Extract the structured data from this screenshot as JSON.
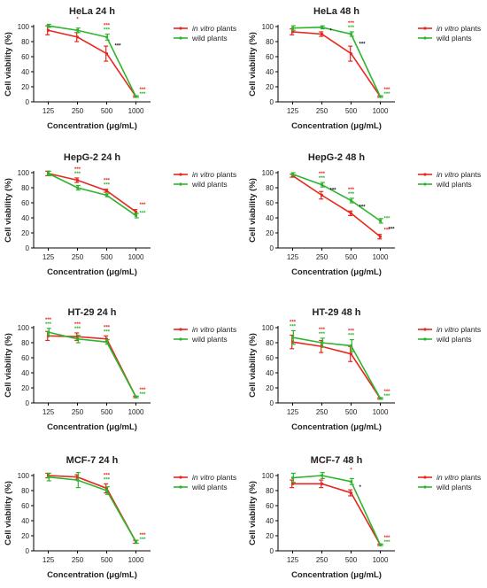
{
  "legend": {
    "series": [
      {
        "name": "in vitro plants",
        "name_prefix": "in vitro",
        "name_suffix": " plants",
        "color": "#e8271e"
      },
      {
        "name": "wild plants",
        "color": "#2cb52c"
      }
    ]
  },
  "axis_text": {
    "xlabel": "Concentration (μg/mL)",
    "ylabel": "Cell viability (%)"
  },
  "chart_data": [
    {
      "type": "line",
      "title": "HeLa 24 h",
      "x": [
        125,
        250,
        500,
        1000
      ],
      "ylim": [
        0,
        100
      ],
      "yticks": [
        0,
        20,
        40,
        60,
        80,
        100
      ],
      "series": [
        {
          "name": "in vitro plants",
          "values": [
            95,
            86,
            64,
            7
          ],
          "errors": [
            6,
            6,
            10,
            1
          ]
        },
        {
          "name": "wild plants",
          "values": [
            101,
            95,
            86,
            7
          ],
          "errors": [
            2,
            3,
            4,
            1
          ]
        }
      ],
      "annotations": [
        {
          "x": 250,
          "text": "*",
          "series": "in vitro plants"
        },
        {
          "x": 500,
          "text": "***",
          "series": "in vitro plants"
        },
        {
          "x": 500,
          "text": "***",
          "series": "wild plants"
        },
        {
          "x": 500,
          "text": "***",
          "series": "comparison"
        },
        {
          "x": 1000,
          "text": "***",
          "series": "in vitro plants"
        },
        {
          "x": 1000,
          "text": "***",
          "series": "wild plants"
        }
      ]
    },
    {
      "type": "line",
      "title": "HeLa 48 h",
      "x": [
        125,
        250,
        500,
        1000
      ],
      "ylim": [
        0,
        100
      ],
      "yticks": [
        0,
        20,
        40,
        60,
        80,
        100
      ],
      "series": [
        {
          "name": "in vitro plants",
          "values": [
            93,
            90,
            64,
            7
          ],
          "errors": [
            4,
            3,
            10,
            1
          ]
        },
        {
          "name": "wild plants",
          "values": [
            98,
            99,
            90,
            7
          ],
          "errors": [
            3,
            2,
            3,
            1
          ]
        }
      ],
      "annotations": [
        {
          "x": 250,
          "text": "*",
          "series": "comparison"
        },
        {
          "x": 500,
          "text": "***",
          "series": "in vitro plants"
        },
        {
          "x": 500,
          "text": "***",
          "series": "wild plants"
        },
        {
          "x": 500,
          "text": "***",
          "series": "comparison"
        },
        {
          "x": 1000,
          "text": "***",
          "series": "in vitro plants"
        },
        {
          "x": 1000,
          "text": "***",
          "series": "wild plants"
        }
      ]
    },
    {
      "type": "line",
      "title": "HepG-2 24 h",
      "x": [
        125,
        250,
        500,
        1000
      ],
      "ylim": [
        0,
        100
      ],
      "yticks": [
        0,
        20,
        40,
        60,
        80,
        100
      ],
      "series": [
        {
          "name": "in vitro plants",
          "values": [
            99,
            90,
            76,
            48
          ],
          "errors": [
            3,
            3,
            2,
            3
          ]
        },
        {
          "name": "wild plants",
          "values": [
            99,
            80,
            70,
            43
          ],
          "errors": [
            3,
            3,
            2,
            3
          ]
        }
      ],
      "annotations": [
        {
          "x": 250,
          "text": "***",
          "series": "in vitro plants"
        },
        {
          "x": 250,
          "text": "***",
          "series": "wild plants"
        },
        {
          "x": 500,
          "text": "***",
          "series": "in vitro plants"
        },
        {
          "x": 500,
          "text": "***",
          "series": "wild plants"
        },
        {
          "x": 1000,
          "text": "***",
          "series": "in vitro plants"
        },
        {
          "x": 1000,
          "text": "***",
          "series": "wild plants"
        }
      ]
    },
    {
      "type": "line",
      "title": "HepG-2 48 h",
      "x": [
        125,
        250,
        500,
        1000
      ],
      "ylim": [
        0,
        100
      ],
      "yticks": [
        0,
        20,
        40,
        60,
        80,
        100
      ],
      "series": [
        {
          "name": "in vitro plants",
          "values": [
            96,
            70,
            46,
            15
          ],
          "errors": [
            2,
            5,
            3,
            3
          ]
        },
        {
          "name": "wild plants",
          "values": [
            98,
            84,
            63,
            36
          ],
          "errors": [
            2,
            3,
            3,
            3
          ]
        }
      ],
      "annotations": [
        {
          "x": 250,
          "text": "***",
          "series": "in vitro plants"
        },
        {
          "x": 250,
          "text": "***",
          "series": "wild plants"
        },
        {
          "x": 250,
          "text": "***",
          "series": "comparison"
        },
        {
          "x": 500,
          "text": "***",
          "series": "in vitro plants"
        },
        {
          "x": 500,
          "text": "***",
          "series": "wild plants"
        },
        {
          "x": 500,
          "text": "***",
          "series": "comparison"
        },
        {
          "x": 1000,
          "text": "***",
          "series": "in vitro plants"
        },
        {
          "x": 1000,
          "text": "***",
          "series": "wild plants"
        },
        {
          "x": 1000,
          "text": "***",
          "series": "comparison"
        }
      ]
    },
    {
      "type": "line",
      "title": "HT-29 24 h",
      "x": [
        125,
        250,
        500,
        1000
      ],
      "ylim": [
        0,
        100
      ],
      "yticks": [
        0,
        20,
        40,
        60,
        80,
        100
      ],
      "series": [
        {
          "name": "in vitro plants",
          "values": [
            89,
            88,
            85,
            8
          ],
          "errors": [
            6,
            5,
            4,
            1
          ]
        },
        {
          "name": "wild plants",
          "values": [
            94,
            85,
            81,
            8
          ],
          "errors": [
            5,
            5,
            3,
            1
          ]
        }
      ],
      "annotations": [
        {
          "x": 125,
          "text": "***",
          "series": "in vitro plants"
        },
        {
          "x": 125,
          "text": "***",
          "series": "wild plants"
        },
        {
          "x": 250,
          "text": "***",
          "series": "in vitro plants"
        },
        {
          "x": 250,
          "text": "***",
          "series": "wild plants"
        },
        {
          "x": 500,
          "text": "***",
          "series": "in vitro plants"
        },
        {
          "x": 500,
          "text": "***",
          "series": "wild plants"
        },
        {
          "x": 1000,
          "text": "***",
          "series": "in vitro plants"
        },
        {
          "x": 1000,
          "text": "***",
          "series": "wild plants"
        }
      ]
    },
    {
      "type": "line",
      "title": "HT-29 48 h",
      "x": [
        125,
        250,
        500,
        1000
      ],
      "ylim": [
        0,
        100
      ],
      "yticks": [
        0,
        20,
        40,
        60,
        80,
        100
      ],
      "series": [
        {
          "name": "in vitro plants",
          "values": [
            81,
            75,
            65,
            6
          ],
          "errors": [
            9,
            8,
            10,
            1
          ]
        },
        {
          "name": "wild plants",
          "values": [
            87,
            80,
            76,
            6
          ],
          "errors": [
            9,
            6,
            8,
            1
          ]
        }
      ],
      "annotations": [
        {
          "x": 125,
          "text": "***",
          "series": "in vitro plants"
        },
        {
          "x": 125,
          "text": "***",
          "series": "wild plants"
        },
        {
          "x": 250,
          "text": "***",
          "series": "in vitro plants"
        },
        {
          "x": 250,
          "text": "***",
          "series": "wild plants"
        },
        {
          "x": 500,
          "text": "***",
          "series": "in vitro plants"
        },
        {
          "x": 500,
          "text": "***",
          "series": "wild plants"
        },
        {
          "x": 1000,
          "text": "***",
          "series": "in vitro plants"
        },
        {
          "x": 1000,
          "text": "***",
          "series": "wild plants"
        }
      ]
    },
    {
      "type": "line",
      "title": "MCF-7 24 h",
      "x": [
        125,
        250,
        500,
        1000
      ],
      "ylim": [
        0,
        100
      ],
      "yticks": [
        0,
        20,
        40,
        60,
        80,
        100
      ],
      "series": [
        {
          "name": "in vitro plants",
          "values": [
            100,
            98,
            83,
            12
          ],
          "errors": [
            3,
            3,
            6,
            2
          ]
        },
        {
          "name": "wild plants",
          "values": [
            98,
            94,
            80,
            12
          ],
          "errors": [
            5,
            10,
            5,
            2
          ]
        }
      ],
      "annotations": [
        {
          "x": 500,
          "text": "***",
          "series": "in vitro plants"
        },
        {
          "x": 500,
          "text": "***",
          "series": "wild plants"
        },
        {
          "x": 1000,
          "text": "***",
          "series": "in vitro plants"
        },
        {
          "x": 1000,
          "text": "***",
          "series": "wild plants"
        }
      ]
    },
    {
      "type": "line",
      "title": "MCF-7 48 h",
      "x": [
        125,
        250,
        500,
        1000
      ],
      "ylim": [
        0,
        100
      ],
      "yticks": [
        0,
        20,
        40,
        60,
        80,
        100
      ],
      "series": [
        {
          "name": "in vitro plants",
          "values": [
            89,
            89,
            77,
            8
          ],
          "errors": [
            5,
            5,
            4,
            1
          ]
        },
        {
          "name": "wild plants",
          "values": [
            97,
            100,
            92,
            8
          ],
          "errors": [
            6,
            4,
            4,
            1
          ]
        }
      ],
      "annotations": [
        {
          "x": 250,
          "text": "*",
          "series": "in vitro plants"
        },
        {
          "x": 500,
          "text": "*",
          "series": "in vitro plants"
        },
        {
          "x": 500,
          "text": "*",
          "series": "comparison"
        },
        {
          "x": 1000,
          "text": "***",
          "series": "in vitro plants"
        },
        {
          "x": 1000,
          "text": "***",
          "series": "wild plants"
        }
      ]
    }
  ]
}
